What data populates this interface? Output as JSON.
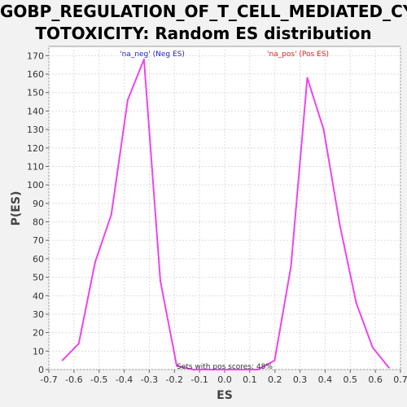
{
  "chart_data": {
    "type": "line",
    "title_line1": "GOBP_REGULATION_OF_T_CELL_MEDIATED_CY",
    "title_line2": "TOTOXICITY: Random ES distribution",
    "xlabel": "ES",
    "ylabel": "P(ES)",
    "xlim": [
      -0.7,
      0.7
    ],
    "ylim": [
      0,
      175
    ],
    "x_ticks": [
      -0.7,
      -0.6,
      -0.5,
      -0.4,
      -0.3,
      -0.2,
      -0.1,
      0.0,
      0.1,
      0.2,
      0.3,
      0.4,
      0.5,
      0.6,
      0.7
    ],
    "x_tick_labels": [
      "-0.7",
      "-0.6",
      "-0.5",
      "-0.4",
      "-0.3",
      "-0.2",
      "-0.1",
      "0.0",
      "0.1",
      "0.2",
      "0.3",
      "0.4",
      "0.5",
      "0.6",
      "0.7"
    ],
    "y_ticks": [
      0,
      10,
      20,
      30,
      40,
      50,
      60,
      70,
      80,
      90,
      100,
      110,
      120,
      130,
      140,
      150,
      160,
      170
    ],
    "grid": true,
    "line_color": "#ee44ee",
    "series": [
      {
        "x": [
          -0.646,
          -0.581,
          -0.516,
          -0.451,
          -0.386,
          -0.321,
          -0.256,
          -0.191,
          -0.126,
          -0.061,
          0.004,
          0.069,
          0.134,
          0.199,
          0.264,
          0.329,
          0.394,
          0.459,
          0.524,
          0.589,
          0.654
        ],
        "y": [
          5,
          14,
          58,
          84,
          146,
          168,
          48,
          2,
          0,
          0,
          0,
          0,
          0,
          5,
          56,
          158,
          130,
          78,
          36,
          12,
          1
        ]
      }
    ],
    "annotations": [
      {
        "text": "'na_neg' (Neg ES)",
        "color": "#2222cc"
      },
      {
        "text": "'na_pos' (Pos ES)",
        "color": "#dd2222"
      },
      {
        "text": "Sets with pos scores: 48%",
        "color": "#333333"
      }
    ]
  }
}
